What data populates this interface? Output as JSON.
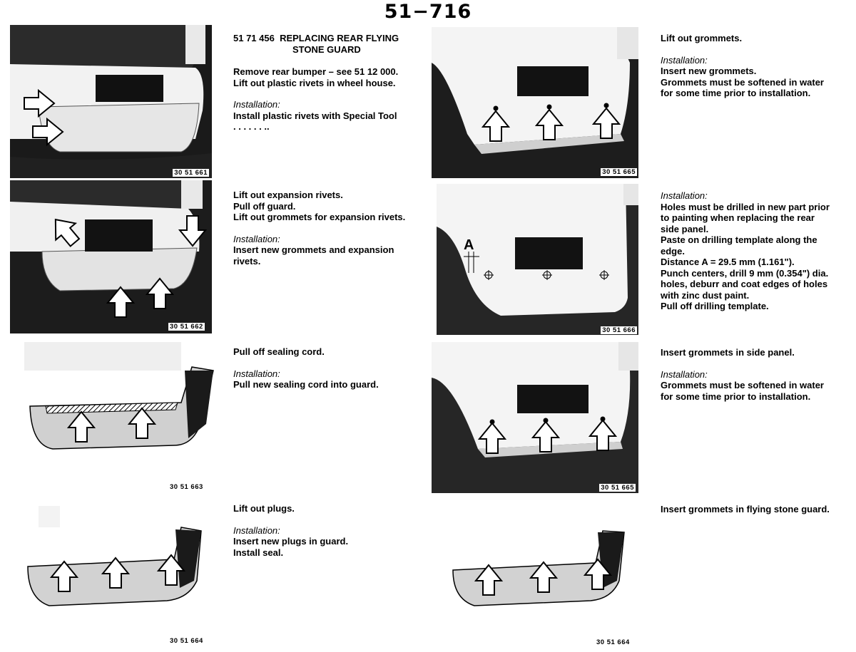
{
  "page_number": "51−716",
  "figures": {
    "f1": "30 51 661",
    "f2": "30 51 662",
    "f3": "30 51 663",
    "f4": "30 51 664",
    "f5": "30 51 665",
    "f6": "30 51 666",
    "f7": "30 51 665",
    "f8": "30 51 664",
    "f6_label": "A"
  },
  "section": {
    "number": "51 71 456",
    "title_line1": "REPLACING REAR FLYING",
    "title_line2": "STONE GUARD"
  },
  "steps": {
    "s1": {
      "lines": "Remove rear bumper – see 51 12 000.\nLift out plastic rivets in wheel house.",
      "install_label": "Installation:",
      "install": "Install plastic rivets with Special Tool\n. . . . . . .."
    },
    "s2": {
      "lines": "Lift out expansion rivets.\nPull off guard.\nLift out grommets for expansion rivets.",
      "install_label": "Installation:",
      "install": "Insert new grommets and expansion\nrivets."
    },
    "s3": {
      "lines": "Pull off sealing cord.",
      "install_label": "Installation:",
      "install": "Pull new sealing cord into guard."
    },
    "s4": {
      "lines": "Lift out plugs.",
      "install_label": "Installation:",
      "install": "Insert new plugs in guard.\nInstall seal."
    },
    "s5": {
      "lines": "Lift out grommets.",
      "install_label": "Installation:",
      "install": "Insert new grommets.\nGrommets must be softened in water\nfor some time prior to installation."
    },
    "s6": {
      "install_label": "Installation:",
      "install": "Holes must be drilled in new part prior\nto painting when replacing the rear\nside panel.\nPaste on drilling template along the\nedge.\nDistance A = 29.5 mm (1.161\").\nPunch centers, drill 9 mm (0.354\") dia.\nholes, deburr and coat edges of holes\nwith zinc dust paint.\nPull off drilling template."
    },
    "s7": {
      "lines": "Insert grommets in side panel.",
      "install_label": "Installation:",
      "install": "Grommets must be softened in water\nfor some time prior to installation."
    },
    "s8": {
      "lines": "Insert grommets in flying stone guard."
    }
  }
}
